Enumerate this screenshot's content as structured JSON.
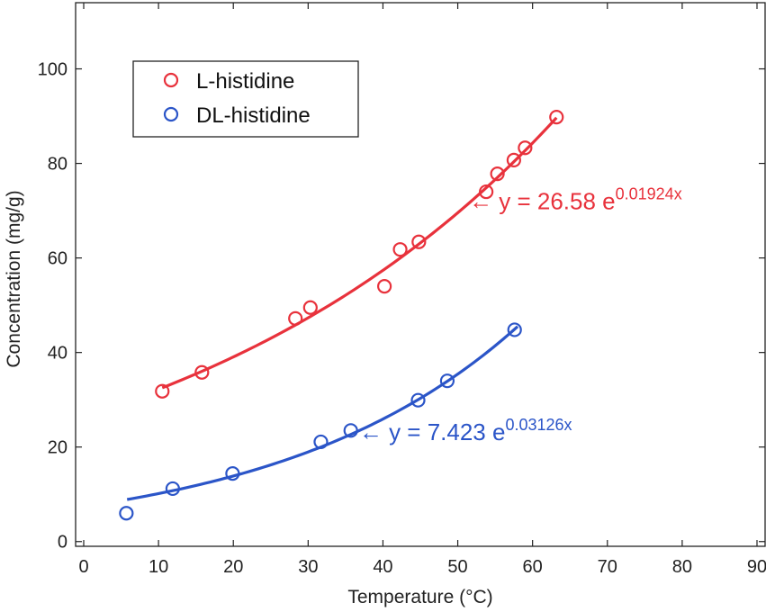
{
  "chart_data": {
    "type": "scatter",
    "xlabel": "Temperature (°C)",
    "ylabel": "Concentration (mg/g)",
    "xlim": [
      0,
      90
    ],
    "ylim": [
      -1,
      114
    ],
    "xticks": [
      0,
      10,
      20,
      30,
      40,
      50,
      60,
      70,
      80,
      90
    ],
    "yticks": [
      0,
      20,
      40,
      60,
      80,
      100
    ],
    "grid": false,
    "legend_position": "top-left",
    "series": [
      {
        "name": "L-histidine",
        "color": "#e8323c",
        "marker": "open-circle",
        "points": [
          [
            10.5,
            31.8
          ],
          [
            15.8,
            35.8
          ],
          [
            28.3,
            47.2
          ],
          [
            30.3,
            49.5
          ],
          [
            40.2,
            54.0
          ],
          [
            42.3,
            61.8
          ],
          [
            44.8,
            63.4
          ],
          [
            53.8,
            74.0
          ],
          [
            55.3,
            77.8
          ],
          [
            57.5,
            80.7
          ],
          [
            59.0,
            83.3
          ],
          [
            63.2,
            89.8
          ]
        ],
        "fit": {
          "a": 26.58,
          "b": 0.01924,
          "x_range": [
            10.5,
            63.2
          ],
          "equation_main": "← y = 26.58 e",
          "equation_exp": "0.01924x",
          "label_x": 51.5,
          "label_y": 70.3
        }
      },
      {
        "name": "DL-histidine",
        "color": "#2b55c8",
        "marker": "open-circle",
        "points": [
          [
            5.7,
            6.0
          ],
          [
            11.9,
            11.2
          ],
          [
            19.9,
            14.4
          ],
          [
            31.7,
            21.1
          ],
          [
            35.7,
            23.5
          ],
          [
            44.7,
            29.9
          ],
          [
            48.6,
            34.0
          ],
          [
            57.6,
            44.8
          ]
        ],
        "fit": {
          "a": 7.423,
          "b": 0.03126,
          "x_range": [
            5.8,
            58.0
          ],
          "equation_main": "← y = 7.423 e",
          "equation_exp": "0.03126x",
          "label_x": 36.8,
          "label_y": 21.5
        }
      }
    ]
  }
}
